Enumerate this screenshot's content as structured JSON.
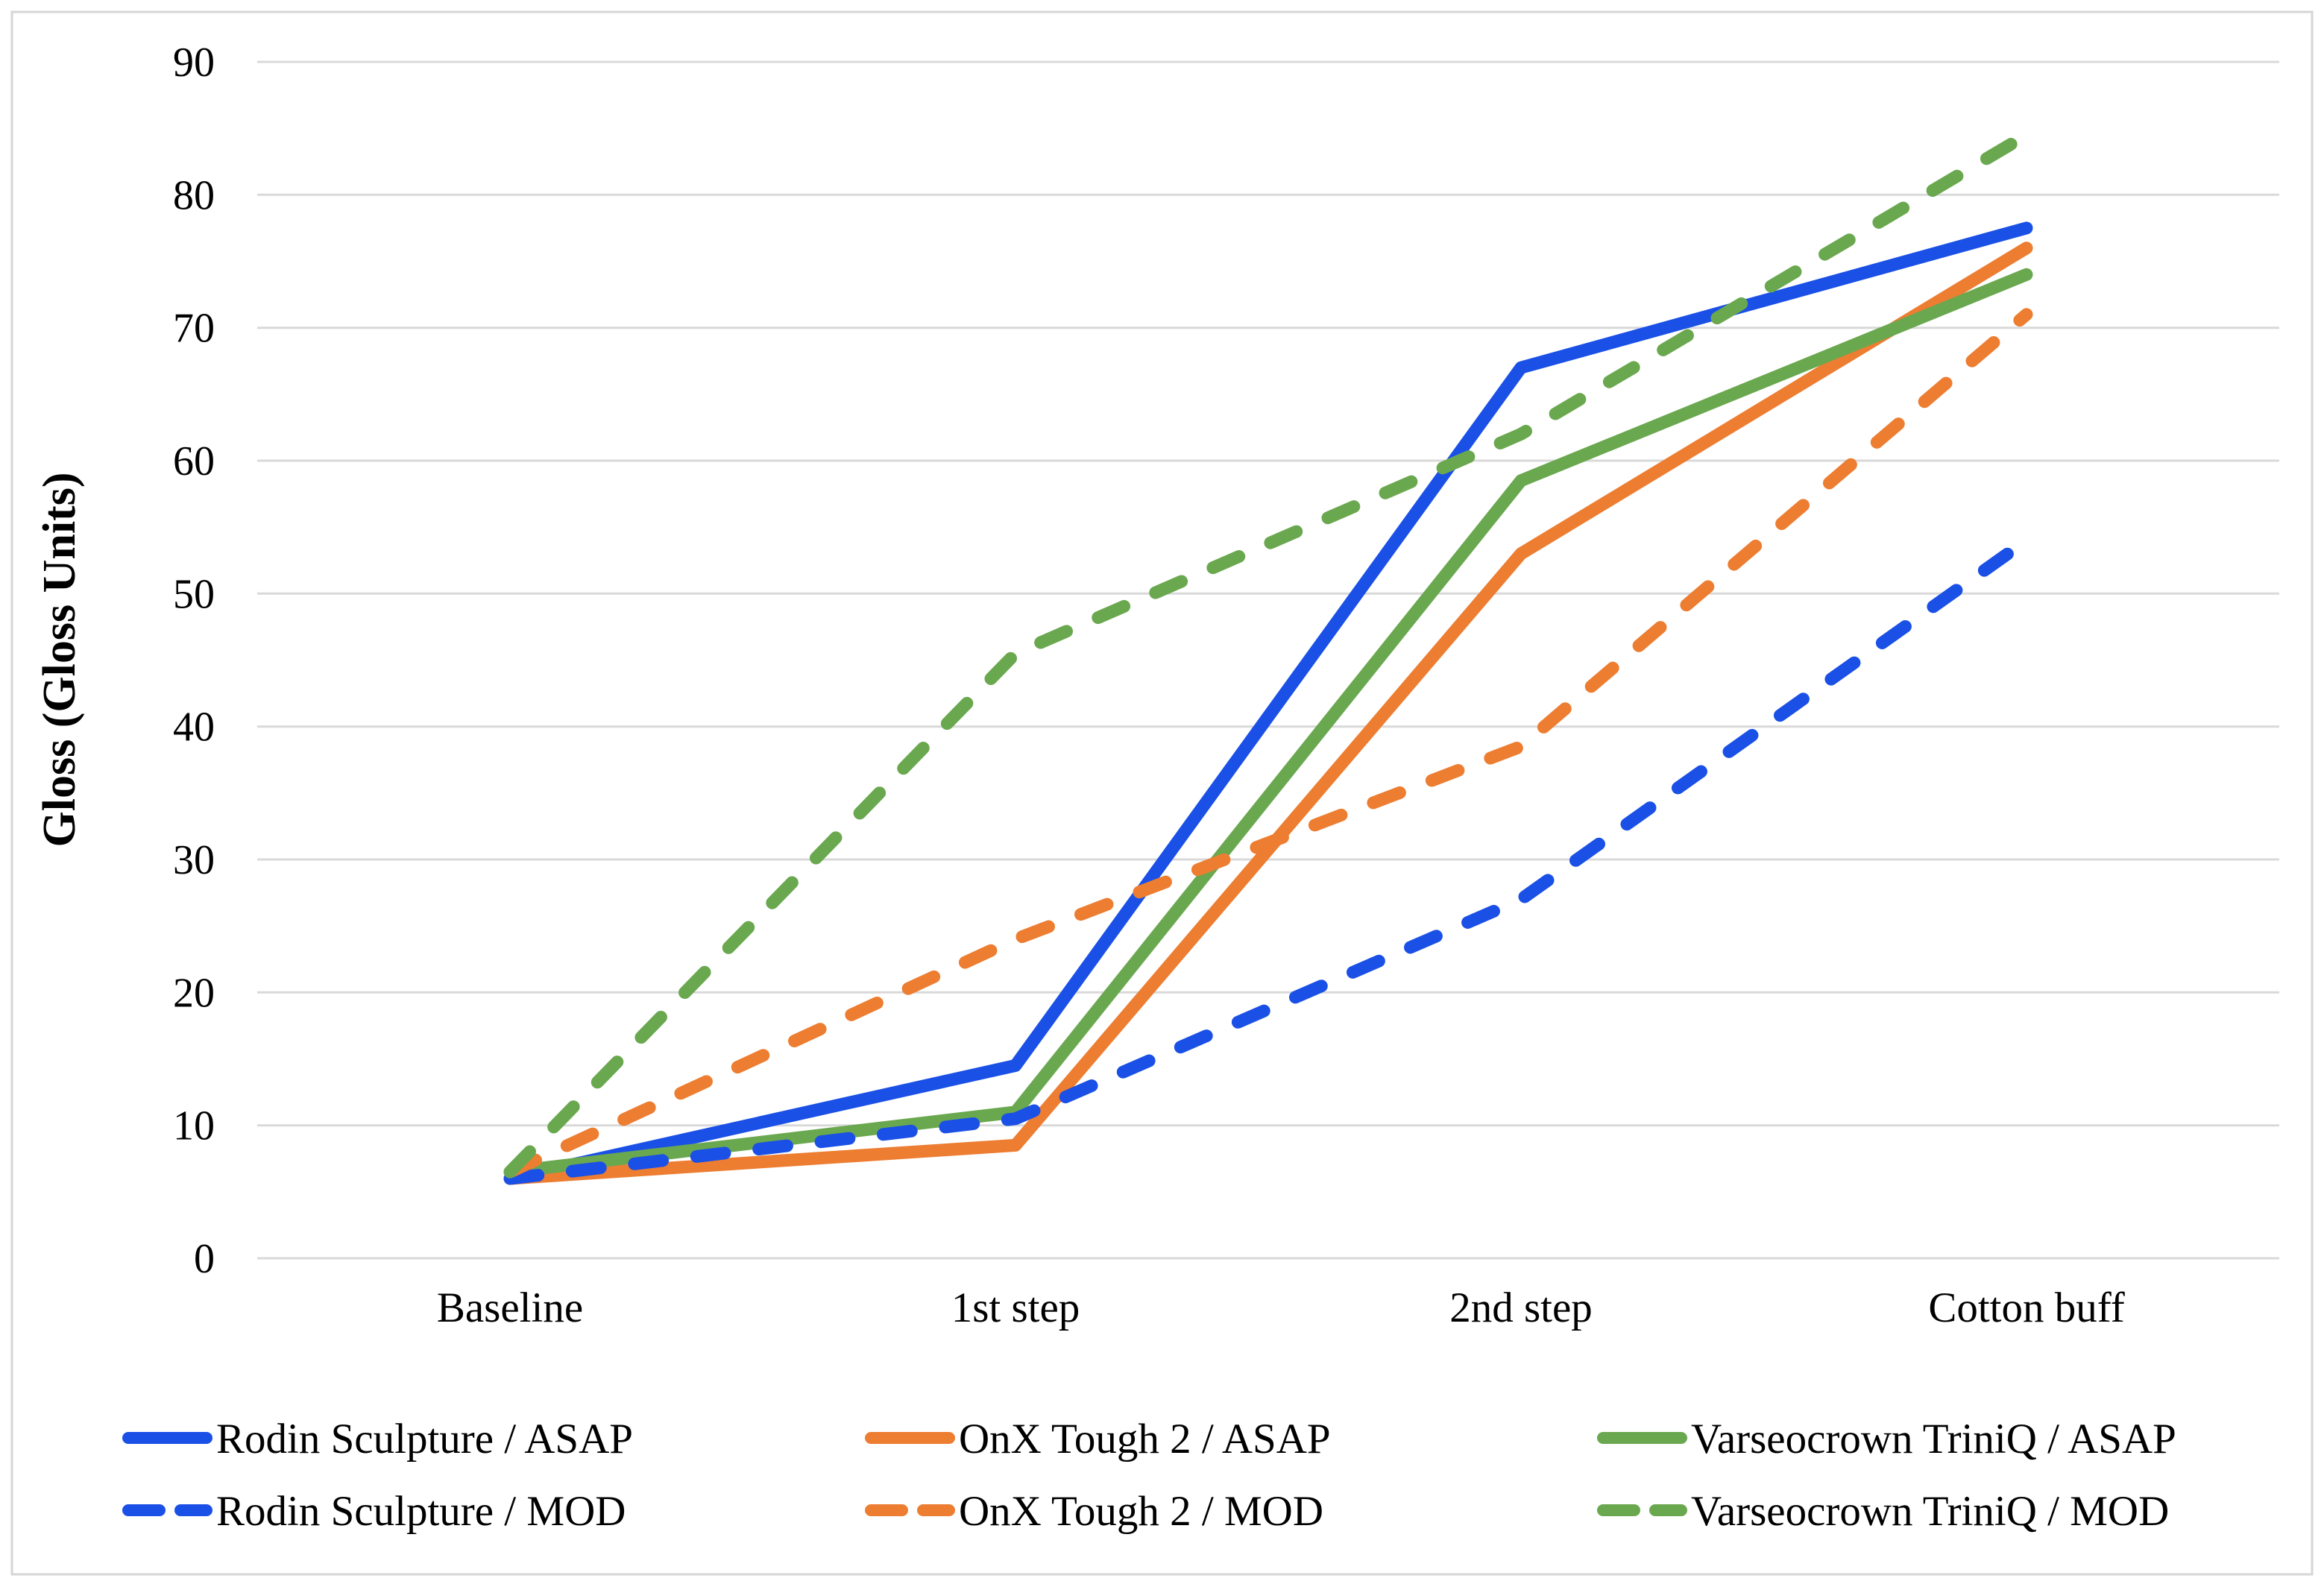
{
  "figure": {
    "background": "#ffffff",
    "border_color": "#d6d6d6"
  },
  "chart_data": {
    "type": "line",
    "title": "",
    "ylabel": "Gloss (Gloss Units)",
    "xlabel": "",
    "ylim": [
      0,
      90
    ],
    "ytick_step": 10,
    "yticks": [
      0,
      10,
      20,
      30,
      40,
      50,
      60,
      70,
      80,
      90
    ],
    "grid": {
      "show": true,
      "color": "#d9d9d9"
    },
    "legend_position": "bottom",
    "categories": [
      "Baseline",
      "1st step",
      "2nd step",
      "Cotton buff"
    ],
    "series": [
      {
        "name": "Rodin Sculpture / ASAP",
        "color": "#1a50e6",
        "line_style": "solid",
        "values": [
          6,
          14.5,
          67,
          77.5
        ]
      },
      {
        "name": "OnX Tough 2 / ASAP",
        "color": "#ed7d31",
        "line_style": "solid",
        "values": [
          6,
          8.5,
          53,
          76
        ]
      },
      {
        "name": "Varseocrown TriniQ / ASAP",
        "color": "#6aa84f",
        "line_style": "solid",
        "values": [
          6.5,
          11,
          58.5,
          74
        ]
      },
      {
        "name": "Rodin Sculpture / MOD",
        "color": "#1a50e6",
        "line_style": "dashed",
        "values": [
          6,
          10.5,
          27,
          54
        ]
      },
      {
        "name": "OnX Tough 2 / MOD",
        "color": "#ed7d31",
        "line_style": "dashed",
        "values": [
          6.5,
          24,
          38.5,
          71
        ]
      },
      {
        "name": "Varseocrown TriniQ / MOD",
        "color": "#6aa84f",
        "line_style": "dashed",
        "values": [
          6.5,
          45.5,
          62,
          84.5
        ]
      }
    ]
  }
}
